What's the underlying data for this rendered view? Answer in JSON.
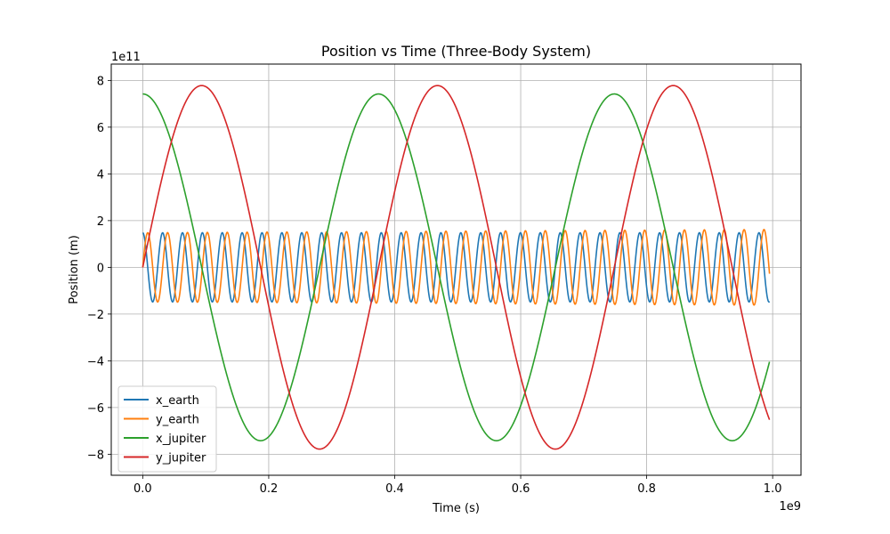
{
  "chart_data": {
    "type": "line",
    "title": "Position vs Time (Three-Body System)",
    "xlabel": "Time (s)",
    "ylabel": "Position (m)",
    "x_offset_label": "1e9",
    "y_offset_label": "1e11",
    "xlim": [
      -0.05,
      1.045
    ],
    "ylim": [
      -8.9,
      8.7
    ],
    "x_ticks": [
      0.0,
      0.2,
      0.4,
      0.6,
      0.8,
      1.0
    ],
    "x_tick_labels": [
      "0.0",
      "0.2",
      "0.4",
      "0.6",
      "0.8",
      "1.0"
    ],
    "y_ticks": [
      -8,
      -6,
      -4,
      -2,
      0,
      2,
      4,
      6,
      8
    ],
    "y_tick_labels": [
      "−8",
      "−6",
      "−4",
      "−2",
      "0",
      "2",
      "4",
      "6",
      "8"
    ],
    "grid": true,
    "legend_position": "lower-left",
    "x_range": [
      0,
      0.995
    ],
    "series": [
      {
        "name": "x_earth",
        "color": "#1f77b4",
        "function": "cos",
        "amplitude": 1.48,
        "period": 0.03156,
        "phase_shift": 0
      },
      {
        "name": "y_earth",
        "color": "#ff7f0e",
        "function": "sin",
        "amplitude_start": 1.48,
        "amplitude_end": 1.62,
        "period": 0.03156,
        "phase_shift": 0
      },
      {
        "name": "x_jupiter",
        "color": "#2ca02c",
        "function": "cos",
        "amplitude": 7.42,
        "offset": -0.35,
        "period": 0.3743,
        "phase_shift": 0
      },
      {
        "name": "y_jupiter",
        "color": "#d62728",
        "function": "sin",
        "amplitude": 7.78,
        "offset": 0.0,
        "period": 0.3743,
        "phase_shift": 0
      }
    ]
  }
}
